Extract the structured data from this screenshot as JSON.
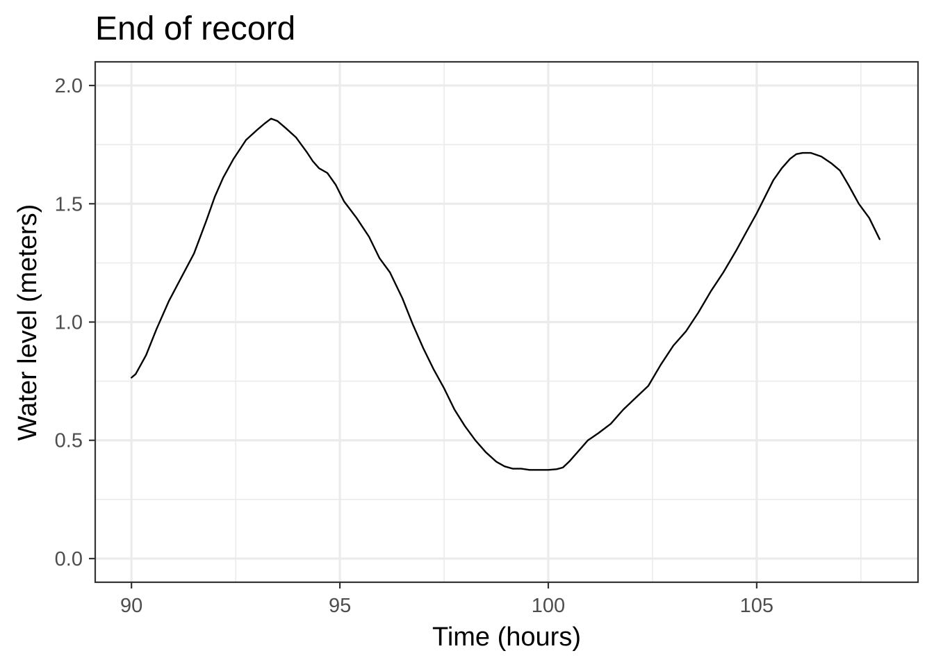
{
  "chart_data": {
    "type": "line",
    "title": "End of record",
    "xlabel": "Time (hours)",
    "ylabel": "Water level (meters)",
    "xlim": [
      89.13,
      108.87
    ],
    "ylim": [
      -0.1,
      2.1
    ],
    "x_major_ticks": [
      90,
      95,
      100,
      105
    ],
    "x_tick_labels": [
      "90",
      "95",
      "100",
      "105"
    ],
    "x_minor_ticks": [
      92.5,
      97.5,
      102.5,
      107.5
    ],
    "y_major_ticks": [
      0.0,
      0.5,
      1.0,
      1.5,
      2.0
    ],
    "y_tick_labels": [
      "0.0",
      "0.5",
      "1.0",
      "1.5",
      "2.0"
    ],
    "y_minor_ticks": [
      0.25,
      0.75,
      1.25,
      1.75
    ],
    "grid": true,
    "legend": "none",
    "colors": {
      "line": "#000000",
      "grid": "#ebebeb",
      "background": "#ffffff"
    },
    "series": [
      {
        "x": [
          90.0,
          90.1,
          90.35,
          90.6,
          90.9,
          91.2,
          91.5,
          91.8,
          92.0,
          92.2,
          92.45,
          92.75,
          93.0,
          93.2,
          93.35,
          93.5,
          93.7,
          93.95,
          94.2,
          94.35,
          94.5,
          94.7,
          94.9,
          95.1,
          95.4,
          95.7,
          95.95,
          96.2,
          96.5,
          96.75,
          97.0,
          97.25,
          97.5,
          97.75,
          98.0,
          98.25,
          98.5,
          98.75,
          98.95,
          99.15,
          99.35,
          99.55,
          99.8,
          100.0,
          100.2,
          100.35,
          100.5,
          100.7,
          100.95,
          101.2,
          101.5,
          101.8,
          102.1,
          102.4,
          102.7,
          103.0,
          103.3,
          103.6,
          103.9,
          104.2,
          104.5,
          104.75,
          105.0,
          105.2,
          105.4,
          105.6,
          105.8,
          105.95,
          106.1,
          106.3,
          106.55,
          106.8,
          107.0,
          107.2,
          107.45,
          107.7,
          107.95
        ],
        "y": [
          0.765,
          0.78,
          0.86,
          0.97,
          1.09,
          1.19,
          1.29,
          1.43,
          1.53,
          1.61,
          1.69,
          1.77,
          1.81,
          1.84,
          1.86,
          1.85,
          1.82,
          1.78,
          1.72,
          1.68,
          1.65,
          1.63,
          1.58,
          1.51,
          1.44,
          1.36,
          1.27,
          1.21,
          1.1,
          0.99,
          0.89,
          0.8,
          0.72,
          0.63,
          0.56,
          0.5,
          0.45,
          0.41,
          0.39,
          0.38,
          0.38,
          0.375,
          0.375,
          0.375,
          0.378,
          0.385,
          0.41,
          0.45,
          0.5,
          0.53,
          0.57,
          0.63,
          0.68,
          0.73,
          0.82,
          0.9,
          0.96,
          1.04,
          1.13,
          1.21,
          1.3,
          1.38,
          1.46,
          1.53,
          1.6,
          1.65,
          1.69,
          1.71,
          1.715,
          1.715,
          1.7,
          1.67,
          1.64,
          1.58,
          1.5,
          1.44,
          1.35
        ]
      }
    ]
  }
}
